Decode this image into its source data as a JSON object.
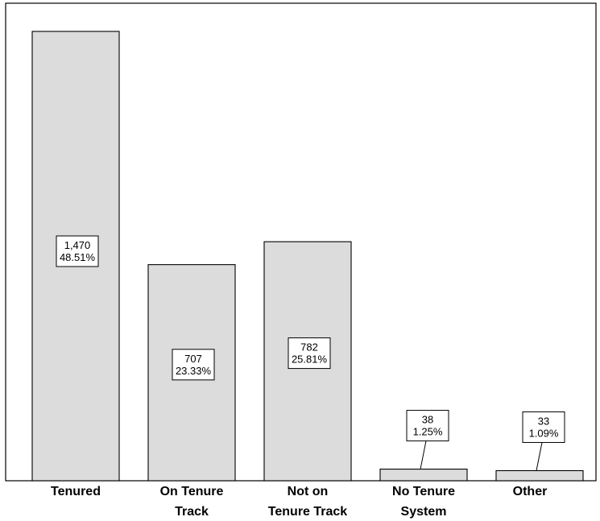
{
  "chart_data": {
    "type": "bar",
    "categories": [
      [
        "Tenured"
      ],
      [
        "On Tenure",
        "Track"
      ],
      [
        "Not on",
        "Tenure Track"
      ],
      [
        "No Tenure",
        "System"
      ],
      [
        "Other"
      ]
    ],
    "values": [
      1470,
      707,
      782,
      38,
      33
    ],
    "value_labels": [
      "1,470",
      "707",
      "782",
      "38",
      "33"
    ],
    "percent_labels": [
      "48.51%",
      "23.33%",
      "25.81%",
      "1.25%",
      "1.09%"
    ],
    "title": "",
    "xlabel": "",
    "ylabel": "",
    "ylim": [
      0,
      1520
    ],
    "grid": false,
    "bar_color": "#dcdcdc",
    "edge_color": "#000000"
  }
}
